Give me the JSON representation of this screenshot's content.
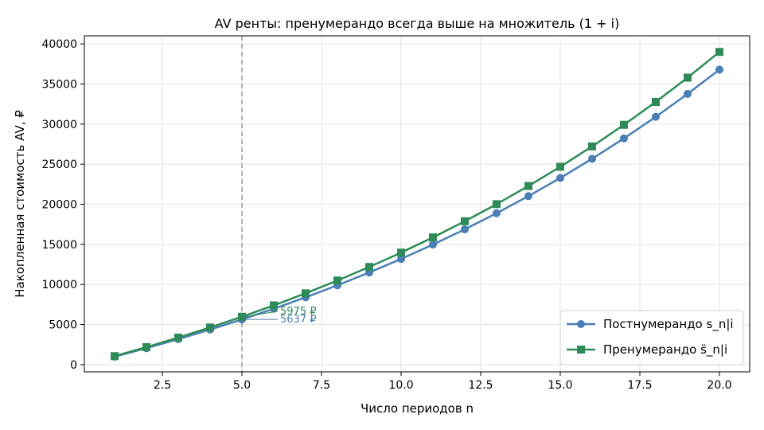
{
  "chart_data": {
    "type": "line",
    "title": "AV ренты: пренумерандо всегда выше на множитель (1 + i)",
    "xlabel": "Число периодов n",
    "ylabel": "Накопленная стоимость AV, ₽",
    "xlim": [
      0.05,
      20.95
    ],
    "ylim": [
      -900,
      41000
    ],
    "xticks": [
      2.5,
      5.0,
      7.5,
      10.0,
      12.5,
      15.0,
      17.5,
      20.0
    ],
    "xtick_labels": [
      "2.5",
      "5.0",
      "7.5",
      "10.0",
      "12.5",
      "15.0",
      "17.5",
      "20.0"
    ],
    "yticks": [
      0,
      5000,
      10000,
      15000,
      20000,
      25000,
      30000,
      35000,
      40000
    ],
    "ytick_labels": [
      "0",
      "5000",
      "10000",
      "15000",
      "20000",
      "25000",
      "30000",
      "35000",
      "40000"
    ],
    "grid": true,
    "legend_position": "lower-right",
    "x": [
      1,
      2,
      3,
      4,
      5,
      6,
      7,
      8,
      9,
      10,
      11,
      12,
      13,
      14,
      15,
      16,
      17,
      18,
      19,
      20
    ],
    "series": [
      {
        "name": "Постнумерандо s_n|i",
        "legend_base": "Постнумерандо",
        "marker": "circle",
        "color": "#4a7fb5",
        "values": [
          1000,
          2060,
          3184,
          4375,
          5637,
          6975,
          8394,
          9897,
          11491,
          13181,
          14972,
          16870,
          18882,
          21015,
          23276,
          25673,
          28213,
          30906,
          33760,
          36786
        ]
      },
      {
        "name": "Пренумерандо s̈_n|i",
        "legend_base": "Пренумерандо",
        "marker": "square",
        "color": "#2e8b57",
        "values": [
          1060,
          2184,
          3375,
          4637,
          5975,
          7394,
          8897,
          10491,
          12181,
          13972,
          15870,
          17882,
          20015,
          22276,
          24673,
          27213,
          29906,
          32760,
          35786,
          38993
        ]
      }
    ],
    "vline": {
      "x": 5,
      "color": "#999999",
      "style": "dashed"
    },
    "annotations": [
      {
        "text": "5975 ₽",
        "x": 5,
        "y": 5975,
        "series": 1,
        "color": "#2e8b57"
      },
      {
        "text": "5637 ₽",
        "x": 5,
        "y": 5637,
        "series": 0,
        "color": "#4a7fb5"
      }
    ]
  }
}
